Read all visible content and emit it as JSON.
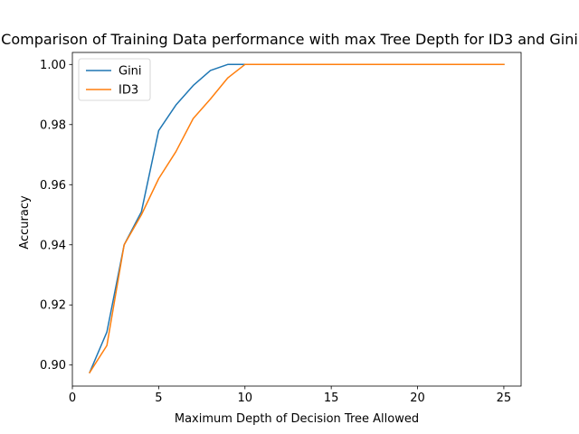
{
  "chart_data": {
    "type": "line",
    "title": "Comparison of Training Data performance with max Tree Depth for ID3 and Gini",
    "xlabel": "Maximum Depth of Decision Tree Allowed",
    "ylabel": "Accuracy",
    "xlim": [
      0,
      26
    ],
    "ylim": [
      0.893,
      1.004
    ],
    "x_ticks": [
      0,
      5,
      10,
      15,
      20,
      25
    ],
    "y_ticks": [
      0.9,
      0.92,
      0.94,
      0.96,
      0.98,
      1.0
    ],
    "x_tick_labels": [
      "0",
      "5",
      "10",
      "15",
      "20",
      "25"
    ],
    "y_tick_labels": [
      "0.90",
      "0.92",
      "0.94",
      "0.96",
      "0.98",
      "1.00"
    ],
    "grid": false,
    "legend_position": "upper-left",
    "x": [
      1,
      2,
      3,
      4,
      5,
      6,
      7,
      8,
      9,
      10,
      11,
      12,
      13,
      14,
      15,
      16,
      17,
      18,
      19,
      20,
      21,
      22,
      23,
      24,
      25
    ],
    "series": [
      {
        "name": "Gini",
        "color": "#1f77b4",
        "values": [
          0.8975,
          0.911,
          0.94,
          0.951,
          0.978,
          0.9865,
          0.993,
          0.998,
          1.0,
          1.0,
          1.0,
          1.0,
          1.0,
          1.0,
          1.0,
          1.0,
          1.0,
          1.0,
          1.0,
          1.0,
          1.0,
          1.0,
          1.0,
          1.0,
          1.0
        ]
      },
      {
        "name": "ID3",
        "color": "#ff7f0e",
        "values": [
          0.8975,
          0.9065,
          0.94,
          0.95,
          0.962,
          0.971,
          0.982,
          0.9885,
          0.9955,
          1.0,
          1.0,
          1.0,
          1.0,
          1.0,
          1.0,
          1.0,
          1.0,
          1.0,
          1.0,
          1.0,
          1.0,
          1.0,
          1.0,
          1.0,
          1.0
        ]
      }
    ]
  }
}
